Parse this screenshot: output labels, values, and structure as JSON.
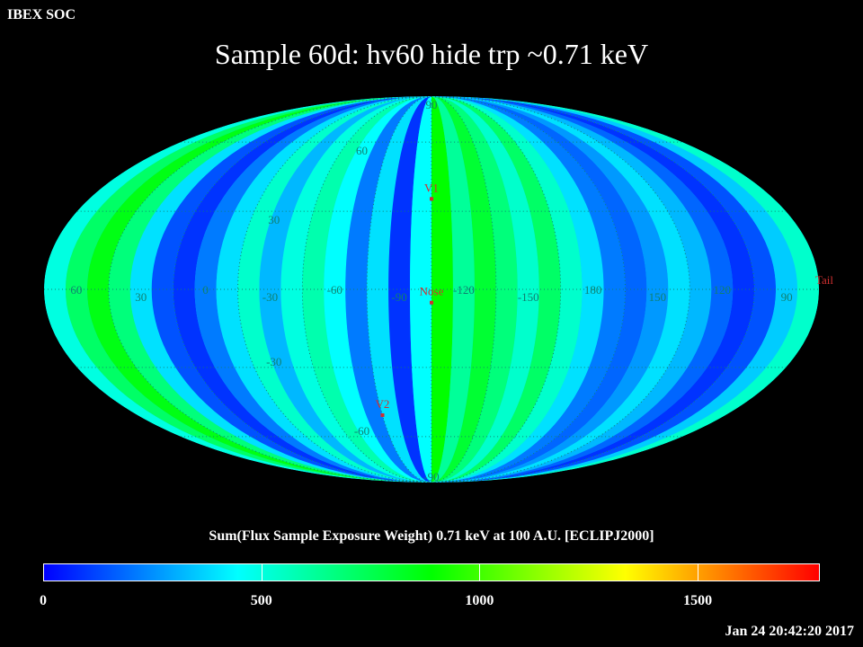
{
  "header": {
    "label": "IBEX SOC"
  },
  "title": "Sample 60d: hv60 hide trp ~0.71 keV",
  "colorbar": {
    "label": "Sum(Flux Sample Exposure Weight)  0.71 keV at 100 A.U. [ECLIPJ2000]",
    "min": 0,
    "max": 1780,
    "ticks": [
      "0",
      "500",
      "1000",
      "1500"
    ],
    "tick_values": [
      0,
      500,
      1000,
      1500
    ],
    "stops": [
      "#0000ff",
      "#0080ff",
      "#00ffff",
      "#00ff80",
      "#00ff00",
      "#80ff00",
      "#ffff00",
      "#ff8000",
      "#ff0000"
    ]
  },
  "timestamp": "Jan 24 20:42:20 2017",
  "map": {
    "projection": "Mollweide",
    "longitude_labels": [
      "60",
      "30",
      "0",
      "-30",
      "-60",
      "-90",
      "-120",
      "-150",
      "180",
      "150",
      "120",
      "90"
    ],
    "latitude_labels": [
      "90",
      "60",
      "30",
      "-30",
      "-60",
      "-90"
    ],
    "markers": [
      {
        "label": "V1"
      },
      {
        "label": "Nose"
      },
      {
        "label": "V2"
      },
      {
        "label": "Tail"
      }
    ],
    "marker_color": "#d03030",
    "grid_color": "#108070"
  }
}
